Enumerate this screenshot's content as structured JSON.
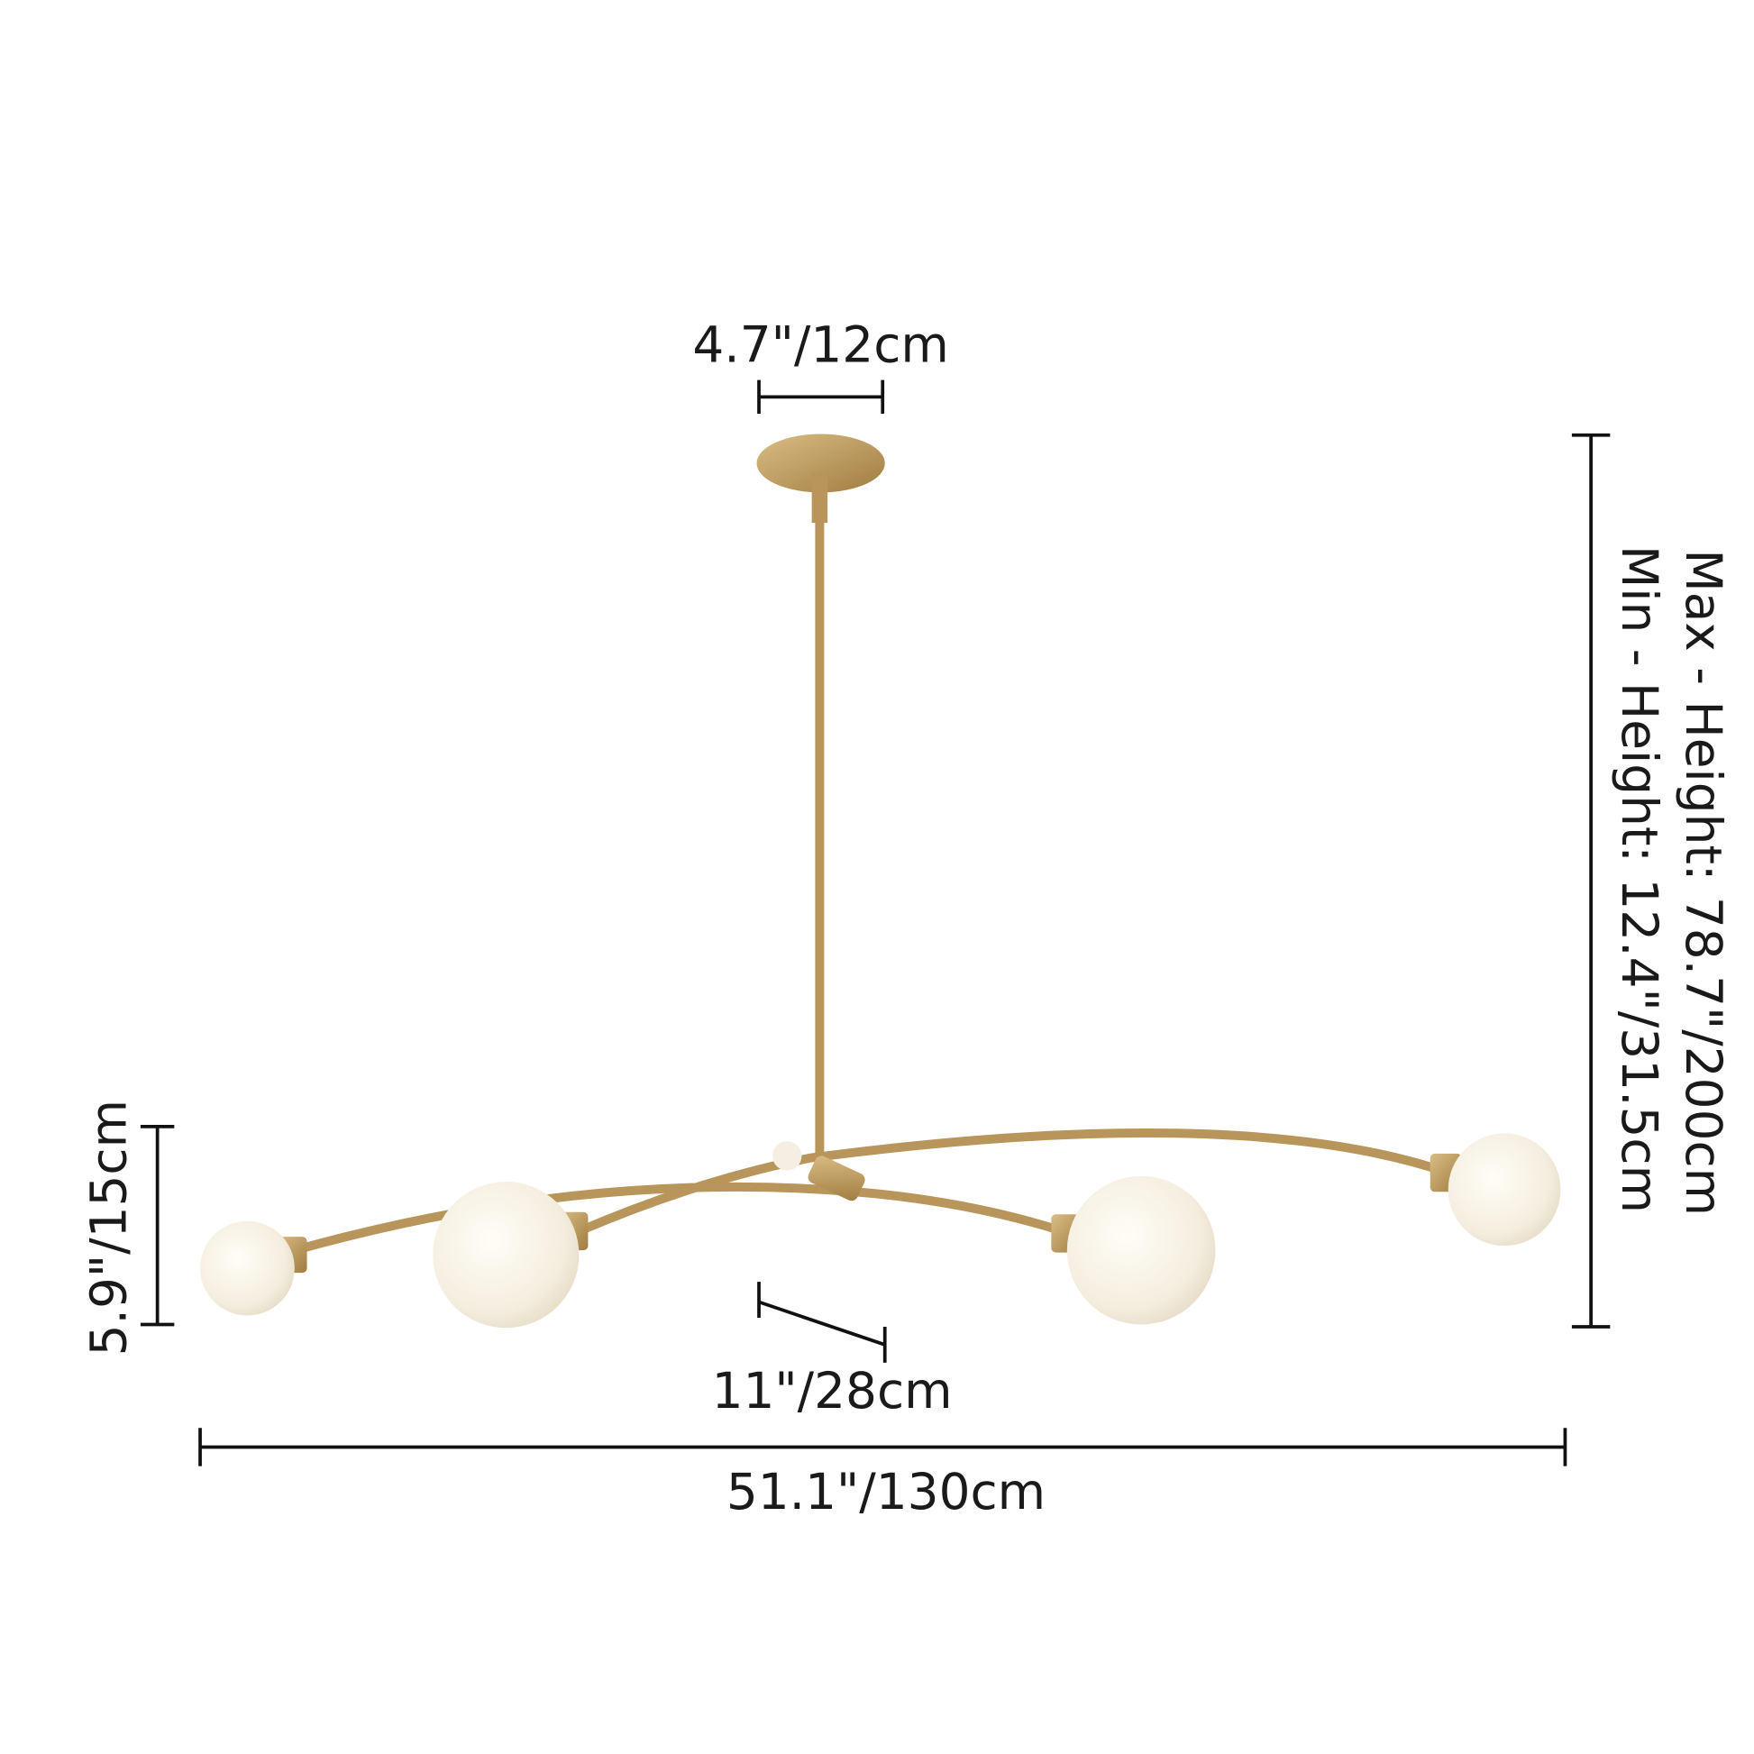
{
  "dimensions": {
    "canopy_width": "4.7\"/12cm",
    "max_height": "Max - Height: 78.7\"/200cm",
    "min_height": "Min - Height: 12.4\"/31.5cm",
    "globe_height": "5.9\"/15cm",
    "arm_spacing": "11\"/28cm",
    "overall_width": "51.1\"/130cm"
  },
  "colors": {
    "brass": "#b8955a",
    "globe": "#f6f1e6",
    "dimension_line": "#111111"
  },
  "product": {
    "globe_count": 4
  }
}
